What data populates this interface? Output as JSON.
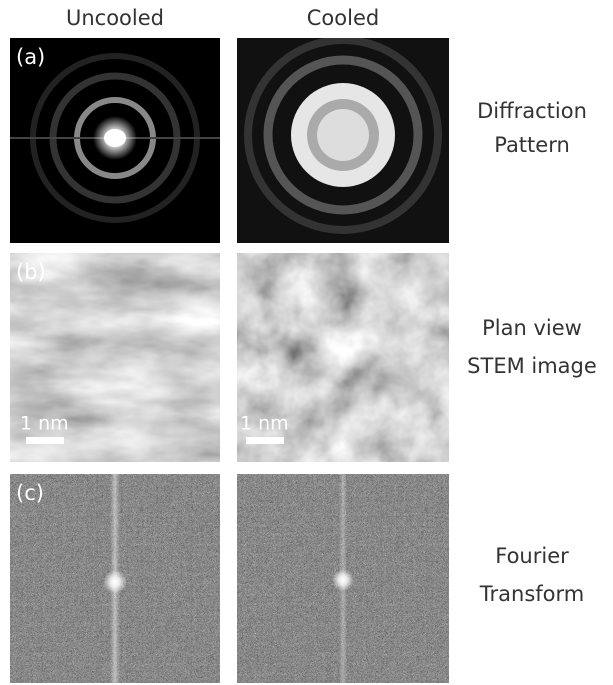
{
  "columns": [
    "Uncooled",
    "Cooled"
  ],
  "rows": [
    {
      "panel": "(a)",
      "label": [
        "Diffraction",
        "Pattern"
      ]
    },
    {
      "panel": "(b)",
      "label": [
        "Plan view",
        "STEM image"
      ],
      "scale_bars": [
        "1 nm",
        "1 nm"
      ]
    },
    {
      "panel": "(c)",
      "label": [
        "Fourier",
        "Transform"
      ]
    }
  ]
}
